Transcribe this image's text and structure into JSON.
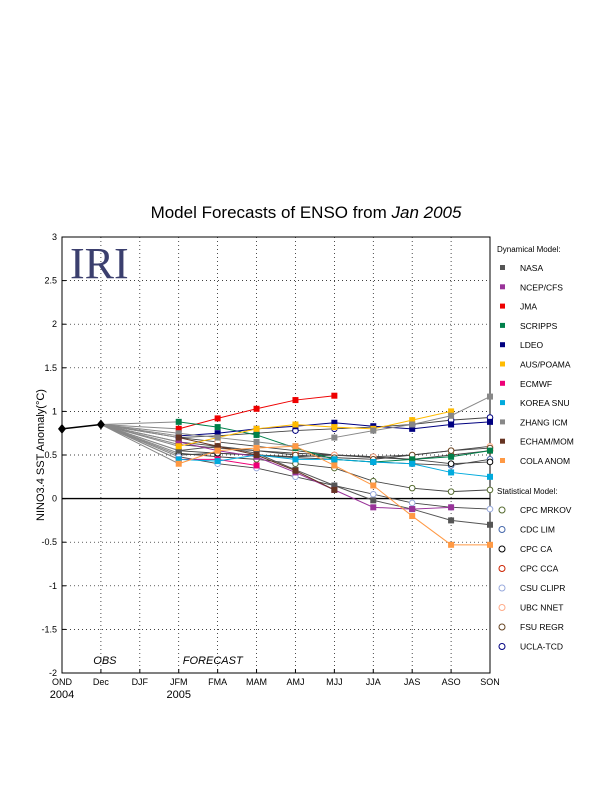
{
  "chart_data": {
    "type": "line",
    "title_main": "Model Forecasts of ENSO from",
    "title_month": "Jan 2005",
    "ylabel": "NINO3.4 SST Anomaly(°C)",
    "ylim": [
      -2,
      3
    ],
    "y_ticks": [
      "3",
      "2.5",
      "2",
      "1.5",
      "1",
      "0.5",
      "0",
      "-0.5",
      "-1",
      "-1.5",
      "-2"
    ],
    "y_tick_values": [
      3,
      2.5,
      2,
      1.5,
      1,
      0.5,
      0,
      -0.5,
      -1,
      -1.5,
      -2
    ],
    "categories": [
      "OND",
      "Dec",
      "DJF",
      "JFM",
      "FMA",
      "MAM",
      "AMJ",
      "MJJ",
      "JJA",
      "JAS",
      "ASO",
      "SON"
    ],
    "year_labels": [
      {
        "label": "2004",
        "category": 0
      },
      {
        "label": "2005",
        "category": 3
      }
    ],
    "annotations": {
      "obs": "OBS",
      "forecast": "FORECAST"
    },
    "grid": true,
    "zero_line": true,
    "logo_text": "IRI",
    "observed": {
      "x": [
        0,
        1
      ],
      "values": [
        0.8,
        0.85
      ]
    },
    "legend_dynamical_title": "Dynamical Model:",
    "legend_statistical_title": "Statistical Model:",
    "dynamical_series": [
      {
        "name": "NASA",
        "color": "#555555",
        "start": 3,
        "values": [
          0.55,
          0.6,
          0.52,
          0.33,
          0.15,
          -0.02,
          -0.12,
          -0.25,
          -0.3
        ]
      },
      {
        "name": "NCEP/CFS",
        "color": "#993399",
        "start": 3,
        "values": [
          0.65,
          0.55,
          0.48,
          0.3,
          0.1,
          -0.1,
          -0.12,
          -0.1
        ]
      },
      {
        "name": "JMA",
        "color": "#ee0000",
        "start": 3,
        "values": [
          0.8,
          0.92,
          1.03,
          1.13,
          1.18
        ]
      },
      {
        "name": "SCRIPPS",
        "color": "#00804a",
        "start": 3,
        "values": [
          0.88,
          0.82,
          0.73,
          0.58,
          0.45,
          0.42,
          0.45,
          0.48,
          0.55
        ]
      },
      {
        "name": "LDEO",
        "color": "#000080",
        "start": 3,
        "values": [
          0.72,
          0.75,
          0.8,
          0.83,
          0.87,
          0.83,
          0.8,
          0.85,
          0.88
        ]
      },
      {
        "name": "AUS/POAMA",
        "color": "#ffbb00",
        "start": 3,
        "values": [
          0.6,
          0.7,
          0.8,
          0.85,
          0.82,
          0.8,
          0.9,
          1.0
        ]
      },
      {
        "name": "ECMWF",
        "color": "#ee0077",
        "start": 3,
        "values": [
          0.45,
          0.45,
          0.38
        ]
      },
      {
        "name": "KOREA SNU",
        "color": "#00aadd",
        "start": 3,
        "values": [
          0.45,
          0.43,
          0.5,
          0.45,
          0.45,
          0.42,
          0.4,
          0.3,
          0.25
        ]
      },
      {
        "name": "ZHANG ICM",
        "color": "#888888",
        "start": 3,
        "values": [
          0.75,
          0.7,
          0.65,
          0.6,
          0.7,
          0.78,
          0.85,
          0.95,
          1.17
        ]
      },
      {
        "name": "ECHAM/MOM",
        "color": "#663322",
        "start": 3,
        "values": [
          0.7,
          0.6,
          0.5,
          0.32,
          0.1
        ]
      },
      {
        "name": "COLA ANOM",
        "color": "#ff9944",
        "start": 3,
        "values": [
          0.4,
          0.55,
          0.58,
          0.6,
          0.38,
          0.15,
          -0.2,
          -0.53,
          -0.53
        ]
      }
    ],
    "statistical_series": [
      {
        "name": "CPC MRKOV",
        "color": "#556b2f",
        "start": 3,
        "values": [
          0.52,
          0.48,
          0.45,
          0.4,
          0.35,
          0.2,
          0.12,
          0.08,
          0.1
        ]
      },
      {
        "name": "CDC LIM",
        "color": "#4466aa",
        "start": 3,
        "values": [
          0.55,
          0.52,
          0.5,
          0.47,
          0.45,
          0.42,
          0.4,
          0.38,
          0.45
        ]
      },
      {
        "name": "CPC CA",
        "color": "#000000",
        "start": 3,
        "values": [
          0.5,
          0.52,
          0.5,
          0.48,
          0.5,
          0.48,
          0.45,
          0.4,
          0.42
        ]
      },
      {
        "name": "CPC CCA",
        "color": "#cc2200",
        "start": 3,
        "values": [
          0.62,
          0.58,
          0.55,
          0.52,
          0.5,
          0.47,
          0.45,
          0.5,
          0.55
        ]
      },
      {
        "name": "CSU CLIPR",
        "color": "#99aadd",
        "start": 3,
        "values": [
          0.48,
          0.4,
          0.35,
          0.25,
          0.15,
          0.05,
          -0.05,
          -0.1,
          -0.12
        ]
      },
      {
        "name": "UBC NNET",
        "color": "#ffaa88",
        "start": 3,
        "values": [
          0.7,
          0.65,
          0.6,
          0.55,
          0.5,
          0.48,
          0.5,
          0.55,
          0.6
        ]
      },
      {
        "name": "FSU REGR",
        "color": "#664422",
        "start": 3,
        "values": [
          0.65,
          0.6,
          0.55,
          0.5,
          0.47,
          0.45,
          0.5,
          0.55,
          0.58
        ]
      },
      {
        "name": "UCLA-TCD",
        "color": "#000080",
        "start": 3,
        "values": [
          0.7,
          0.72,
          0.75,
          0.78,
          0.8,
          0.82,
          0.85,
          0.9,
          0.93
        ]
      }
    ]
  }
}
